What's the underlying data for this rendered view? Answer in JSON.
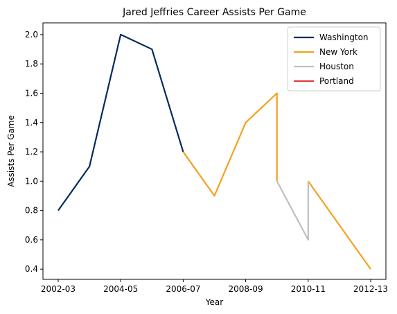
{
  "chart_data": {
    "type": "line",
    "title": "Jared Jeffries Career Assists Per Game",
    "xlabel": "Year",
    "ylabel": "Assists Per Game",
    "x_ticks": [
      "2002-03",
      "2004-05",
      "2006-07",
      "2008-09",
      "2010-11",
      "2012-13"
    ],
    "y_ticks": [
      "0.4",
      "0.6",
      "0.8",
      "1.0",
      "1.2",
      "1.4",
      "1.6",
      "1.8",
      "2.0"
    ],
    "ylim": [
      0.33,
      2.08
    ],
    "legend_position": "top-right",
    "grid": false,
    "series": [
      {
        "name": "Washington",
        "color": "#002B5C",
        "points": [
          {
            "x": "2002-03",
            "y": 0.8
          },
          {
            "x": "2003-04",
            "y": 1.1
          },
          {
            "x": "2004-05",
            "y": 2.0
          },
          {
            "x": "2005-06",
            "y": 1.9
          },
          {
            "x": "2006-07",
            "y": 1.2
          }
        ]
      },
      {
        "name": "New York",
        "color": "#F5A01D",
        "segments": [
          [
            {
              "x": "2006-07",
              "y": 1.2
            },
            {
              "x": "2007-08",
              "y": 0.9
            },
            {
              "x": "2008-09",
              "y": 1.4
            },
            {
              "x": "2009-10",
              "y": 1.6
            },
            {
              "x": "2009-10",
              "y": 1.0
            }
          ],
          [
            {
              "x": "2010-11",
              "y": 1.0
            },
            {
              "x": "2012-13",
              "y": 0.4
            }
          ]
        ]
      },
      {
        "name": "Houston",
        "color": "#BFBFBF",
        "points": [
          {
            "x": "2009-10",
            "y": 1.0
          },
          {
            "x": "2010-11",
            "y": 0.6
          },
          {
            "x": "2010-11",
            "y": 1.0
          }
        ]
      },
      {
        "name": "Portland",
        "color": "#E03A3E",
        "points": []
      }
    ]
  }
}
